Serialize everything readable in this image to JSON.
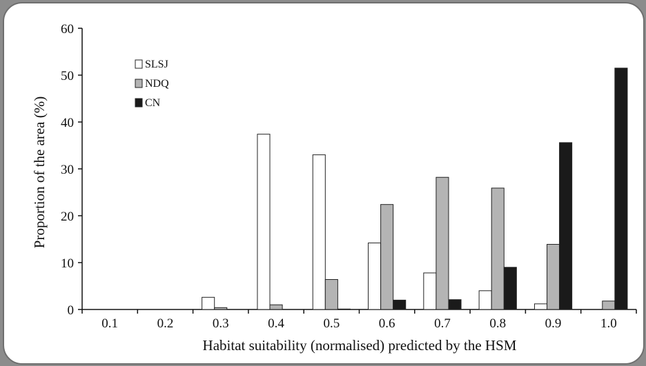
{
  "chart_data": {
    "type": "bar",
    "xlabel": "Habitat suitability (normalised) predicted by the HSM",
    "ylabel": "Proportion of the area (%)",
    "categories": [
      "0.1",
      "0.2",
      "0.3",
      "0.4",
      "0.5",
      "0.6",
      "0.7",
      "0.8",
      "0.9",
      "1.0"
    ],
    "ylim": [
      0,
      60
    ],
    "yticks": [
      "0",
      "10",
      "20",
      "30",
      "40",
      "50",
      "60"
    ],
    "grid": false,
    "legend_position": "top-left",
    "series": [
      {
        "name": "SLSJ",
        "color": "#ffffff",
        "values": [
          0,
          0,
          2.6,
          37.4,
          33.0,
          14.2,
          7.8,
          4.0,
          1.2,
          0
        ]
      },
      {
        "name": "NDQ",
        "color": "#b4b4b4",
        "values": [
          0,
          0,
          0.4,
          1.0,
          6.4,
          22.4,
          28.2,
          25.9,
          13.9,
          1.8
        ]
      },
      {
        "name": "CN",
        "color": "#1a1a1a",
        "values": [
          0,
          0,
          0,
          0,
          0.1,
          2.0,
          2.1,
          9.0,
          35.6,
          51.5
        ]
      }
    ]
  }
}
